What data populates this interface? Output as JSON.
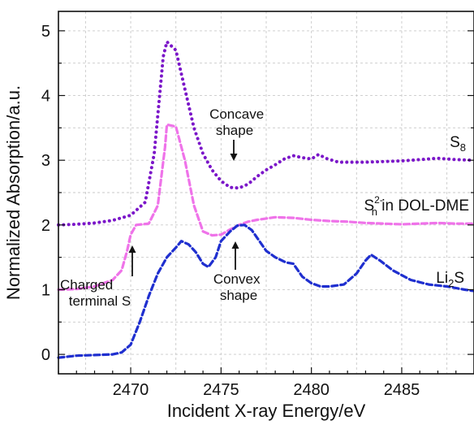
{
  "chart_data": {
    "type": "line",
    "title": "",
    "xlabel": "Incident X-ray Energy/eV",
    "ylabel": "Normalized Absorption/a.u.",
    "xlim": [
      2466,
      2489
    ],
    "ylim": [
      -0.3,
      5.3
    ],
    "xticks": [
      2470,
      2475,
      2480,
      2485
    ],
    "yticks": [
      0,
      1,
      2,
      3,
      4,
      5
    ],
    "grid": true,
    "series": [
      {
        "name": "S₈",
        "label_main": "S",
        "label_sub": "8",
        "color": "#7b16c9",
        "style": "dotted",
        "points": [
          [
            2466,
            2.0
          ],
          [
            2467,
            2.01
          ],
          [
            2468,
            2.03
          ],
          [
            2469,
            2.07
          ],
          [
            2470,
            2.15
          ],
          [
            2470.8,
            2.35
          ],
          [
            2471.3,
            3.1
          ],
          [
            2471.8,
            4.6
          ],
          [
            2472,
            4.83
          ],
          [
            2472.5,
            4.7
          ],
          [
            2473,
            4.1
          ],
          [
            2473.5,
            3.5
          ],
          [
            2474,
            3.1
          ],
          [
            2474.5,
            2.85
          ],
          [
            2475,
            2.68
          ],
          [
            2475.5,
            2.58
          ],
          [
            2476,
            2.57
          ],
          [
            2476.5,
            2.63
          ],
          [
            2477,
            2.75
          ],
          [
            2477.5,
            2.85
          ],
          [
            2478,
            2.93
          ],
          [
            2478.5,
            3.02
          ],
          [
            2479,
            3.07
          ],
          [
            2479.5,
            3.04
          ],
          [
            2480,
            3.02
          ],
          [
            2480.4,
            3.09
          ],
          [
            2480.8,
            3.03
          ],
          [
            2481.5,
            2.97
          ],
          [
            2482,
            2.97
          ],
          [
            2483,
            2.97
          ],
          [
            2484,
            2.98
          ],
          [
            2485,
            2.99
          ],
          [
            2486,
            3.01
          ],
          [
            2487,
            3.03
          ],
          [
            2488,
            3.01
          ],
          [
            2489,
            3.0
          ]
        ]
      },
      {
        "name": "Sₙ²⁻ in DOL-DME",
        "label_main": "S",
        "label_sub": "n",
        "label_sup": "2-",
        "label_rest": " in DOL-DME",
        "color": "#ef73e9",
        "style": "dashed",
        "points": [
          [
            2466,
            1.0
          ],
          [
            2467,
            1.01
          ],
          [
            2468,
            1.05
          ],
          [
            2469,
            1.15
          ],
          [
            2469.5,
            1.3
          ],
          [
            2469.8,
            1.6
          ],
          [
            2470,
            1.85
          ],
          [
            2470.3,
            2.0
          ],
          [
            2471,
            2.02
          ],
          [
            2471.5,
            2.3
          ],
          [
            2471.9,
            3.2
          ],
          [
            2472,
            3.55
          ],
          [
            2472.5,
            3.52
          ],
          [
            2473,
            3.0
          ],
          [
            2473.5,
            2.3
          ],
          [
            2474,
            1.9
          ],
          [
            2474.5,
            1.84
          ],
          [
            2475,
            1.85
          ],
          [
            2475.5,
            1.93
          ],
          [
            2476,
            2.0
          ],
          [
            2476.5,
            2.05
          ],
          [
            2477,
            2.08
          ],
          [
            2478,
            2.12
          ],
          [
            2479,
            2.11
          ],
          [
            2480,
            2.08
          ],
          [
            2481,
            2.06
          ],
          [
            2482,
            2.05
          ],
          [
            2483,
            2.03
          ],
          [
            2484,
            2.02
          ],
          [
            2485,
            2.01
          ],
          [
            2486,
            2.02
          ],
          [
            2487,
            2.03
          ],
          [
            2488,
            2.02
          ],
          [
            2489,
            2.02
          ]
        ]
      },
      {
        "name": "Li₂S",
        "label_main": "Li",
        "label_sub": "2",
        "label_rest": "S",
        "color": "#1f2fcf",
        "style": "dashed",
        "points": [
          [
            2466,
            -0.05
          ],
          [
            2467,
            -0.02
          ],
          [
            2468,
            -0.01
          ],
          [
            2469,
            0.0
          ],
          [
            2469.5,
            0.03
          ],
          [
            2470,
            0.15
          ],
          [
            2470.5,
            0.5
          ],
          [
            2471,
            0.9
          ],
          [
            2471.5,
            1.25
          ],
          [
            2472,
            1.5
          ],
          [
            2472.5,
            1.65
          ],
          [
            2472.8,
            1.75
          ],
          [
            2473.2,
            1.7
          ],
          [
            2473.6,
            1.58
          ],
          [
            2474,
            1.4
          ],
          [
            2474.3,
            1.35
          ],
          [
            2474.7,
            1.5
          ],
          [
            2475,
            1.75
          ],
          [
            2475.5,
            1.9
          ],
          [
            2475.9,
            1.99
          ],
          [
            2476.3,
            2.0
          ],
          [
            2476.7,
            1.92
          ],
          [
            2477,
            1.8
          ],
          [
            2477.5,
            1.6
          ],
          [
            2478,
            1.5
          ],
          [
            2478.6,
            1.42
          ],
          [
            2479,
            1.4
          ],
          [
            2479.5,
            1.2
          ],
          [
            2480,
            1.1
          ],
          [
            2480.5,
            1.05
          ],
          [
            2481,
            1.05
          ],
          [
            2481.8,
            1.08
          ],
          [
            2482.5,
            1.25
          ],
          [
            2483,
            1.45
          ],
          [
            2483.3,
            1.54
          ],
          [
            2483.8,
            1.45
          ],
          [
            2484.5,
            1.3
          ],
          [
            2485.5,
            1.15
          ],
          [
            2486.5,
            1.08
          ],
          [
            2487.5,
            1.05
          ],
          [
            2488.5,
            1.0
          ],
          [
            2489,
            0.98
          ]
        ]
      }
    ],
    "annotations": [
      {
        "lines": [
          "Concave",
          "shape"
        ]
      },
      {
        "lines": [
          "Convex",
          "shape"
        ]
      },
      {
        "lines": [
          "Charged",
          "terminal S"
        ]
      }
    ]
  }
}
